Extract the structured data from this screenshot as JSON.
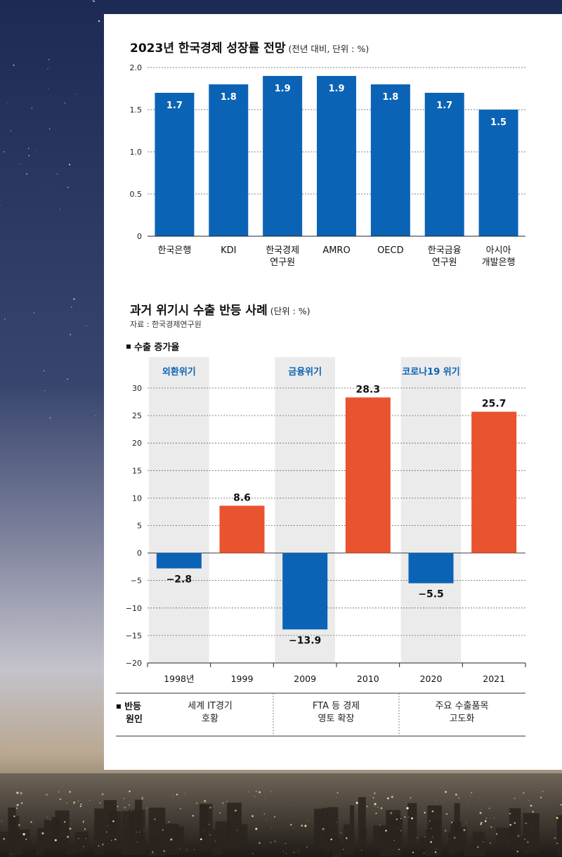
{
  "chart_data": [
    {
      "type": "bar",
      "title": "2023년 한국경제 성장률 전망",
      "subtitle": "(전년 대비, 단위 : %)",
      "categories": [
        [
          "한국은행"
        ],
        [
          "KDI"
        ],
        [
          "한국경제",
          "연구원"
        ],
        [
          "AMRO"
        ],
        [
          "OECD"
        ],
        [
          "한국금융",
          "연구원"
        ],
        [
          "아시아",
          "개발은행"
        ]
      ],
      "values": [
        1.7,
        1.8,
        1.9,
        1.9,
        1.8,
        1.7,
        1.5
      ],
      "value_labels": [
        "1.7",
        "1.8",
        "1.9",
        "1.9",
        "1.8",
        "1.7",
        "1.5"
      ],
      "y_ticks": [
        "2.0",
        "1.5",
        "1.0",
        "0.5",
        "0"
      ],
      "y_tick_values": [
        2.0,
        1.5,
        1.0,
        0.5,
        0
      ],
      "ylim": [
        0,
        2.0
      ],
      "grid": true,
      "bar_color": "#0b63b5"
    },
    {
      "type": "bar",
      "title": "과거 위기시 수출 반등 사례",
      "subtitle": "(단위 : %)",
      "source": "자료 : 한국경제연구원",
      "legend": "수출 증가율",
      "categories": [
        "1998년",
        "1999",
        "2009",
        "2010",
        "2020",
        "2021"
      ],
      "values": [
        -2.8,
        8.6,
        -13.9,
        28.3,
        -5.5,
        25.7
      ],
      "value_labels": [
        "−2.8",
        "8.6",
        "−13.9",
        "28.3",
        "−5.5",
        "25.7"
      ],
      "y_ticks": [
        "30",
        "25",
        "20",
        "15",
        "10",
        "5",
        "0",
        "−5",
        "−10",
        "−15",
        "−20"
      ],
      "y_tick_values": [
        30,
        25,
        20,
        15,
        10,
        5,
        0,
        -5,
        -10,
        -15,
        -20
      ],
      "ylim": [
        -20,
        30
      ],
      "grid": true,
      "crisis_labels": [
        "외환위기",
        "금융위기",
        "코로나19 위기"
      ],
      "negative_color": "#0b63b5",
      "positive_color": "#e9532f",
      "shade_color": "#ebebeb",
      "rebound_label": [
        "반등",
        "원인"
      ],
      "rebound_reasons": [
        [
          "세계 IT경기",
          "호황"
        ],
        [
          "FTA 등 경제",
          "영토 확장"
        ],
        [
          "주요 수출품목",
          "고도화"
        ]
      ]
    }
  ]
}
